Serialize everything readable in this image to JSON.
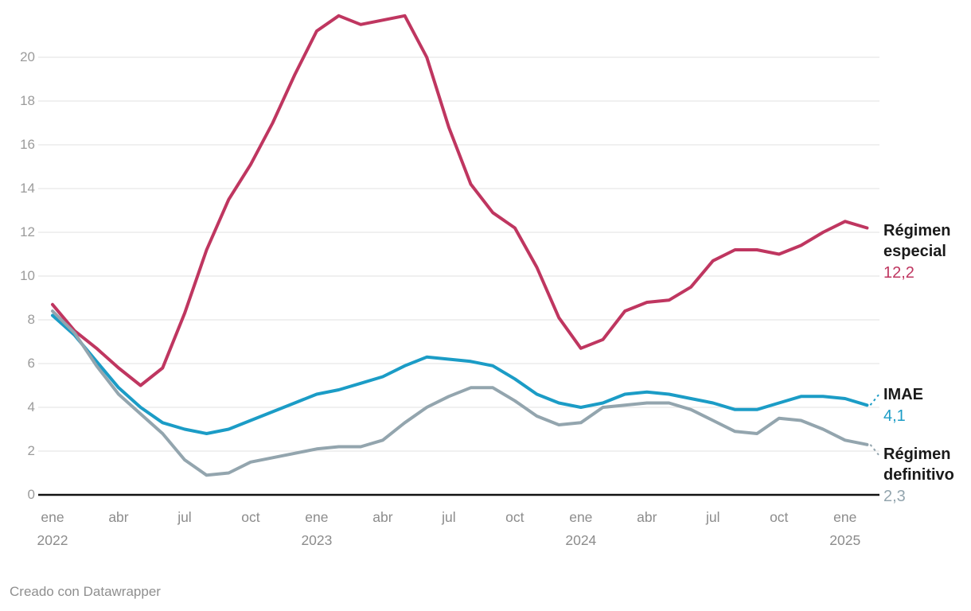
{
  "chart_data": {
    "type": "line",
    "title": "",
    "x_start": "ene 2022",
    "x_end": "feb 2025",
    "x_frequency": "monthly",
    "grid": "horizontal",
    "ylim": [
      0,
      22
    ],
    "y_ticks": [
      0,
      2,
      4,
      6,
      8,
      10,
      12,
      14,
      16,
      18,
      20
    ],
    "x_ticks": [
      {
        "i": 0,
        "label": "ene",
        "year": "2022"
      },
      {
        "i": 3,
        "label": "abr"
      },
      {
        "i": 6,
        "label": "jul"
      },
      {
        "i": 9,
        "label": "oct"
      },
      {
        "i": 12,
        "label": "ene",
        "year": "2023"
      },
      {
        "i": 15,
        "label": "abr"
      },
      {
        "i": 18,
        "label": "jul"
      },
      {
        "i": 21,
        "label": "oct"
      },
      {
        "i": 24,
        "label": "ene",
        "year": "2024"
      },
      {
        "i": 27,
        "label": "abr"
      },
      {
        "i": 30,
        "label": "jul"
      },
      {
        "i": 33,
        "label": "oct"
      },
      {
        "i": 36,
        "label": "ene",
        "year": "2025"
      }
    ],
    "series": [
      {
        "name": "Régimen especial",
        "color": "#bf3660",
        "value_label": "12,2",
        "connector": "none",
        "values": [
          8.7,
          7.5,
          6.7,
          5.8,
          5.0,
          5.8,
          8.3,
          11.2,
          13.5,
          15.1,
          17.0,
          19.2,
          21.2,
          21.9,
          21.5,
          21.7,
          21.9,
          20.0,
          16.8,
          14.2,
          12.9,
          12.2,
          10.4,
          8.1,
          6.7,
          7.1,
          8.4,
          8.8,
          8.9,
          9.5,
          10.7,
          11.2,
          11.2,
          11.0,
          11.4,
          12.0,
          12.5,
          12.2
        ]
      },
      {
        "name": "IMAE",
        "color": "#1b9cc6",
        "value_label": "4,1",
        "connector": "up",
        "values": [
          8.2,
          7.3,
          6.1,
          4.9,
          4.0,
          3.3,
          3.0,
          2.8,
          3.0,
          3.4,
          3.8,
          4.2,
          4.6,
          4.8,
          5.1,
          5.4,
          5.9,
          6.3,
          6.2,
          6.1,
          5.9,
          5.3,
          4.6,
          4.2,
          4.0,
          4.2,
          4.6,
          4.7,
          4.6,
          4.4,
          4.2,
          3.9,
          3.9,
          4.2,
          4.5,
          4.5,
          4.4,
          4.1
        ]
      },
      {
        "name": "Régimen definitivo",
        "color": "#93a5ae",
        "value_label": "2,3",
        "connector": "down",
        "values": [
          8.4,
          7.4,
          5.9,
          4.6,
          3.7,
          2.8,
          1.6,
          0.9,
          1.0,
          1.5,
          1.7,
          1.9,
          2.1,
          2.2,
          2.2,
          2.5,
          3.3,
          4.0,
          4.5,
          4.9,
          4.9,
          4.3,
          3.6,
          3.2,
          3.3,
          4.0,
          4.1,
          4.2,
          4.2,
          3.9,
          3.4,
          2.9,
          2.8,
          3.5,
          3.4,
          3.0,
          2.5,
          2.3
        ]
      }
    ],
    "colors": {
      "grid": "#e8e8e8",
      "baseline": "#121212",
      "axis_text": "#8c8c8c",
      "y_axis_text": "#9b9b9b"
    }
  },
  "footer": {
    "credit": "Creado con Datawrapper"
  }
}
